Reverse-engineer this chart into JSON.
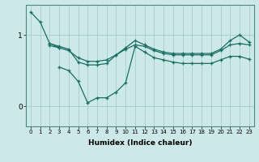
{
  "background_color": "#cce8e8",
  "line_color": "#1a6e64",
  "grid_color": "#aad0d0",
  "xlabel": "Humidex (Indice chaleur)",
  "xlim": [
    -0.5,
    23.5
  ],
  "ylim": [
    -0.28,
    1.42
  ],
  "yticks": [
    0,
    1
  ],
  "xticks": [
    0,
    1,
    2,
    3,
    4,
    5,
    6,
    7,
    8,
    9,
    10,
    11,
    12,
    13,
    14,
    15,
    16,
    17,
    18,
    19,
    20,
    21,
    22,
    23
  ],
  "lines": [
    {
      "x": [
        0,
        1,
        2,
        3
      ],
      "y": [
        1.32,
        1.18,
        0.88,
        0.82
      ]
    },
    {
      "x": [
        2,
        3,
        4,
        5,
        6,
        7,
        8,
        9,
        10,
        11,
        12,
        13,
        14,
        15,
        16,
        17,
        18,
        19,
        20,
        21,
        22,
        23
      ],
      "y": [
        0.88,
        0.84,
        0.8,
        0.62,
        0.58,
        0.58,
        0.6,
        0.72,
        0.82,
        0.92,
        0.86,
        0.8,
        0.76,
        0.74,
        0.74,
        0.74,
        0.74,
        0.74,
        0.8,
        0.92,
        1.0,
        0.9
      ]
    },
    {
      "x": [
        2,
        3,
        4,
        5,
        6,
        7,
        8,
        9,
        10,
        11,
        12,
        13,
        14,
        15,
        16,
        17,
        18,
        19,
        20,
        21,
        22,
        23
      ],
      "y": [
        0.85,
        0.82,
        0.78,
        0.68,
        0.63,
        0.63,
        0.65,
        0.72,
        0.8,
        0.86,
        0.84,
        0.78,
        0.74,
        0.72,
        0.72,
        0.72,
        0.72,
        0.72,
        0.78,
        0.86,
        0.88,
        0.86
      ]
    },
    {
      "x": [
        3,
        4,
        5,
        6,
        7,
        8,
        9,
        10,
        11,
        12,
        13,
        14,
        15,
        16,
        17,
        18,
        19,
        20,
        21,
        22,
        23
      ],
      "y": [
        0.55,
        0.5,
        0.35,
        0.05,
        0.12,
        0.12,
        0.2,
        0.33,
        0.84,
        0.76,
        0.68,
        0.65,
        0.62,
        0.6,
        0.6,
        0.6,
        0.6,
        0.65,
        0.7,
        0.7,
        0.66
      ]
    }
  ]
}
